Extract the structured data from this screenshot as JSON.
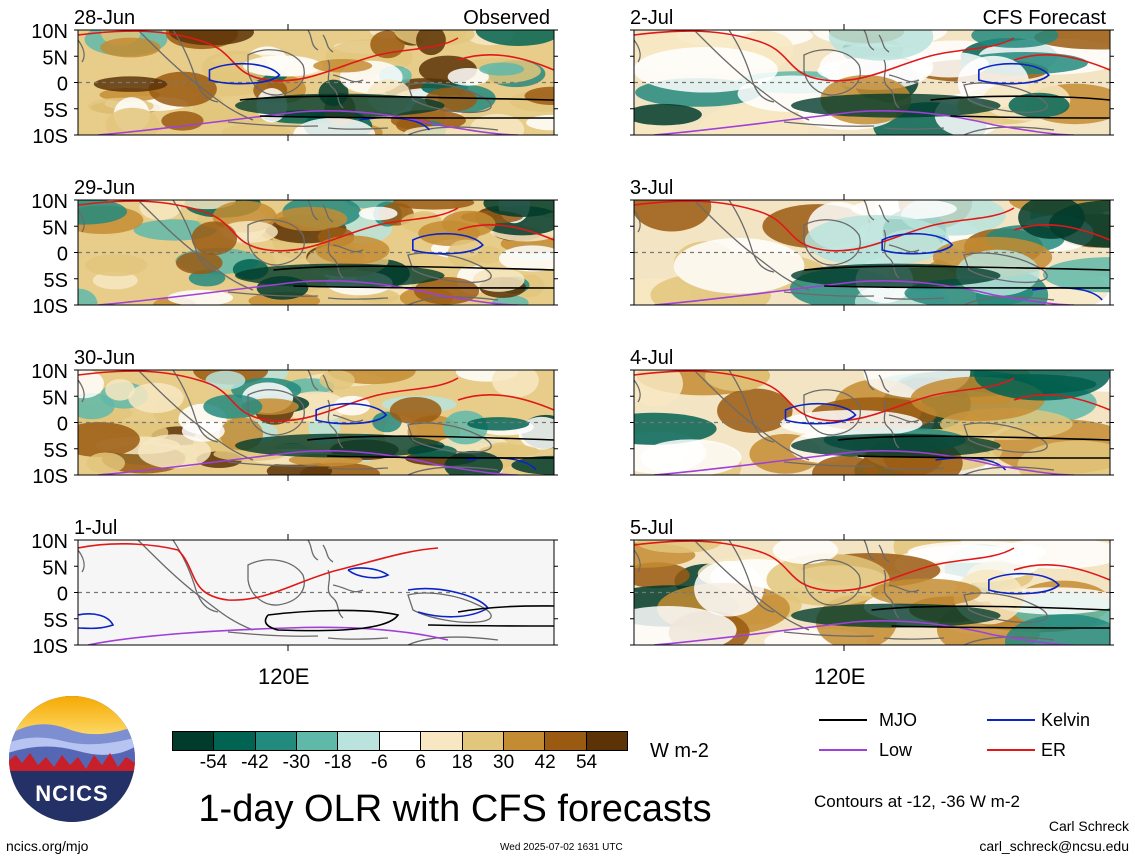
{
  "colorbar": {
    "colors": [
      "#013b2c",
      "#016352",
      "#238a7e",
      "#5fb9a9",
      "#b9e3dc",
      "#ffffff",
      "#f7e7c2",
      "#e2c67b",
      "#c48c32",
      "#9a5a12",
      "#5c3307"
    ],
    "ticks": [
      "-54",
      "-42",
      "-30",
      "-18",
      "-6",
      "6",
      "18",
      "30",
      "42",
      "54"
    ],
    "units": "W m-2"
  },
  "title": "1-day OLR with CFS forecasts",
  "legend": {
    "items": [
      {
        "label": "MJO",
        "color": "#000000"
      },
      {
        "label": "Kelvin",
        "color": "#0a24c8"
      },
      {
        "label": "Low",
        "color": "#a040d8"
      },
      {
        "label": "ER",
        "color": "#e01818"
      }
    ],
    "contours_note": "Contours at -12, -36 W m-2"
  },
  "footer": {
    "url": "ncics.org/mjo",
    "timestamp": "Wed 2025-07-02 1631 UTC",
    "author": "Carl Schreck",
    "email": "carl_schreck@ncsu.edu"
  },
  "logo_text": "NCICS",
  "axis": {
    "lat_labels": [
      "10N",
      "5N",
      "0",
      "5S",
      "10S"
    ],
    "lon_label": "120E"
  },
  "columns": {
    "left_header": "Observed",
    "right_header": "CFS Forecast"
  },
  "panels_left": [
    {
      "date": "28-Jun",
      "kind": "obs"
    },
    {
      "date": "29-Jun",
      "kind": "obs"
    },
    {
      "date": "30-Jun",
      "kind": "obs"
    },
    {
      "date": "1-Jul",
      "kind": "empty"
    }
  ],
  "panels_right": [
    {
      "date": "2-Jul",
      "kind": "fcst"
    },
    {
      "date": "3-Jul",
      "kind": "fcst"
    },
    {
      "date": "4-Jul",
      "kind": "fcst"
    },
    {
      "date": "5-Jul",
      "kind": "fcst"
    }
  ]
}
